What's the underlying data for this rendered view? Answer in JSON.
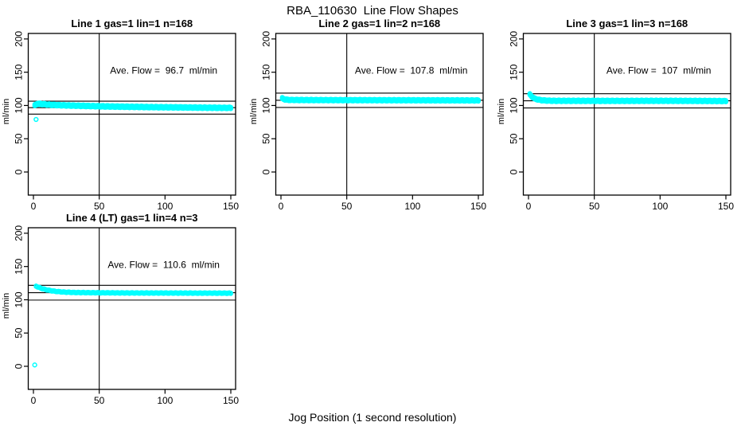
{
  "page": {
    "title": "RBA_110630  Line Flow Shapes",
    "xlabel": "Jog Position (1 second resolution)",
    "background": "#ffffff",
    "point_color": "#00FFFF",
    "axis_color": "#000000"
  },
  "chart_data": [
    {
      "type": "scatter",
      "title": "Line 1 gas=1 lin=1 n=168",
      "ylabel": "ml/min",
      "annotation": "Ave. Flow =  96.7  ml/min",
      "ave_flow": 96.7,
      "n": 168,
      "xlim": [
        0,
        150
      ],
      "ylim": [
        0,
        200
      ],
      "xticks": [
        0,
        50,
        100,
        150
      ],
      "yticks": [
        0,
        50,
        100,
        150,
        200
      ],
      "hlines": [
        106.4,
        96.7,
        87.0
      ],
      "vline": 50,
      "band": [
        [
          1,
          100.2
        ],
        [
          2,
          101.6
        ],
        [
          3,
          102.4
        ],
        [
          5,
          102.4
        ],
        [
          8,
          101.8
        ],
        [
          12,
          101.2
        ],
        [
          20,
          100.4
        ],
        [
          30,
          99.8
        ],
        [
          40,
          99.3
        ],
        [
          50,
          98.8
        ],
        [
          60,
          98.4
        ],
        [
          70,
          98.1
        ],
        [
          80,
          97.8
        ],
        [
          90,
          97.5
        ],
        [
          100,
          97.3
        ],
        [
          110,
          97.1
        ],
        [
          120,
          96.9
        ],
        [
          130,
          96.7
        ],
        [
          140,
          96.5
        ],
        [
          150,
          96.4
        ]
      ],
      "band_offsets": [
        -1.3,
        0,
        1.3
      ],
      "outliers": [
        [
          2,
          79
        ]
      ]
    },
    {
      "type": "scatter",
      "title": "Line 2 gas=1 lin=2 n=168",
      "ylabel": "ml/min",
      "annotation": "Ave. Flow =  107.8  ml/min",
      "ave_flow": 107.8,
      "n": 168,
      "xlim": [
        0,
        150
      ],
      "ylim": [
        0,
        200
      ],
      "xticks": [
        0,
        50,
        100,
        150
      ],
      "yticks": [
        0,
        50,
        100,
        150,
        200
      ],
      "hlines": [
        118.6,
        107.8,
        97.0
      ],
      "vline": 50,
      "band": [
        [
          1,
          110.8
        ],
        [
          2,
          109.8
        ],
        [
          3,
          109.0
        ],
        [
          5,
          108.5
        ],
        [
          8,
          108.3
        ],
        [
          15,
          108.2
        ],
        [
          25,
          108.1
        ],
        [
          50,
          108.0
        ],
        [
          75,
          107.9
        ],
        [
          100,
          107.8
        ],
        [
          125,
          107.7
        ],
        [
          150,
          107.6
        ]
      ],
      "band_offsets": [
        -1.2,
        0,
        1.2
      ],
      "outliers": []
    },
    {
      "type": "scatter",
      "title": "Line 3 gas=1 lin=3 n=168",
      "ylabel": "ml/min",
      "annotation": "Ave. Flow =  107  ml/min",
      "ave_flow": 107,
      "n": 168,
      "xlim": [
        0,
        150
      ],
      "ylim": [
        0,
        200
      ],
      "xticks": [
        0,
        50,
        100,
        150
      ],
      "yticks": [
        0,
        50,
        100,
        150,
        200
      ],
      "hlines": [
        117.7,
        107.0,
        96.3
      ],
      "vline": 50,
      "band": [
        [
          1,
          116.6
        ],
        [
          2,
          114.6
        ],
        [
          3,
          112.6
        ],
        [
          4,
          111.1
        ],
        [
          5,
          110.1
        ],
        [
          7,
          108.9
        ],
        [
          10,
          107.9
        ],
        [
          15,
          107.2
        ],
        [
          20,
          107.0
        ],
        [
          30,
          107.0
        ],
        [
          50,
          106.9
        ],
        [
          75,
          106.9
        ],
        [
          100,
          107.0
        ],
        [
          125,
          106.9
        ],
        [
          150,
          106.6
        ]
      ],
      "band_offsets": [
        -1.2,
        0,
        1.2
      ],
      "outliers": []
    },
    {
      "type": "scatter",
      "title": "Line 4 (LT) gas=1 lin=4 n=3",
      "ylabel": "ml/min",
      "annotation": "Ave. Flow =  110.6  ml/min",
      "ave_flow": 110.6,
      "n": 3,
      "xlim": [
        0,
        150
      ],
      "ylim": [
        0,
        200
      ],
      "xticks": [
        0,
        50,
        100,
        150
      ],
      "yticks": [
        0,
        50,
        100,
        150,
        200
      ],
      "hlines": [
        121.7,
        110.6,
        99.5
      ],
      "vline": 50,
      "band": [
        [
          2,
          120.6
        ],
        [
          3,
          119.6
        ],
        [
          4,
          118.7
        ],
        [
          5,
          117.9
        ],
        [
          7,
          116.5
        ],
        [
          10,
          114.9
        ],
        [
          13,
          113.7
        ],
        [
          16,
          112.8
        ],
        [
          20,
          112.0
        ],
        [
          25,
          111.4
        ],
        [
          30,
          111.0
        ],
        [
          40,
          110.7
        ],
        [
          50,
          110.5
        ],
        [
          75,
          110.2
        ],
        [
          100,
          110.1
        ],
        [
          125,
          110.0
        ],
        [
          150,
          109.9
        ]
      ],
      "band_offsets": [
        -0.5,
        0.5
      ],
      "outliers": [
        [
          1,
          2
        ]
      ]
    }
  ]
}
